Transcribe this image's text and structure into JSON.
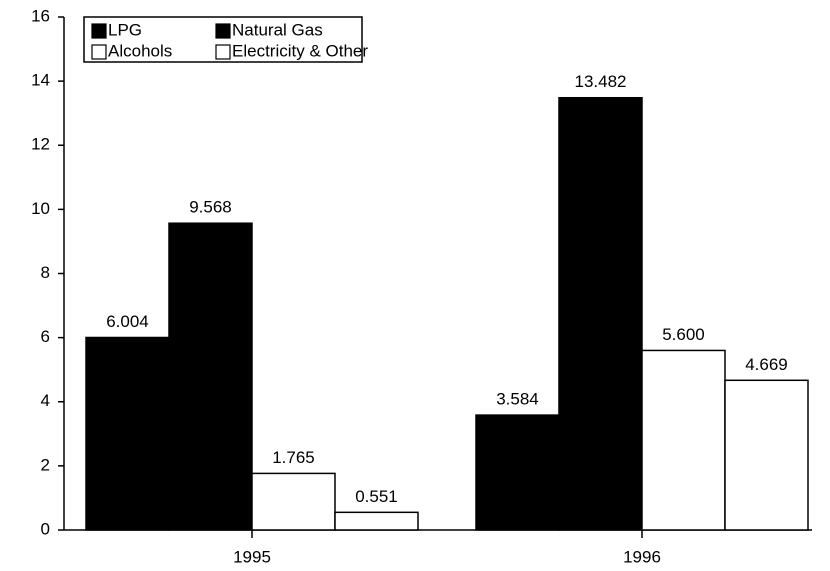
{
  "chart_data": {
    "type": "bar",
    "categories": [
      "1995",
      "1996"
    ],
    "series": [
      {
        "name": "LPG",
        "color": "#000000",
        "values": [
          6.004,
          3.584
        ],
        "value_labels": [
          "6.004",
          "3.584"
        ]
      },
      {
        "name": "Natural Gas",
        "color": "#000000",
        "values": [
          9.568,
          13.482
        ],
        "value_labels": [
          "9.568",
          "13.482"
        ]
      },
      {
        "name": "Alcohols",
        "color": "#ffffff",
        "values": [
          1.765,
          5.6
        ],
        "value_labels": [
          "1.765",
          "5.600"
        ]
      },
      {
        "name": "Electricity & Other",
        "color": "#ffffff",
        "values": [
          0.551,
          4.669
        ],
        "value_labels": [
          "0.551",
          "4.669"
        ]
      }
    ],
    "ylim": [
      0,
      16
    ],
    "yticks": [
      0,
      2,
      4,
      6,
      8,
      10,
      12,
      14,
      16
    ],
    "grid": false,
    "legend": "top-left"
  }
}
